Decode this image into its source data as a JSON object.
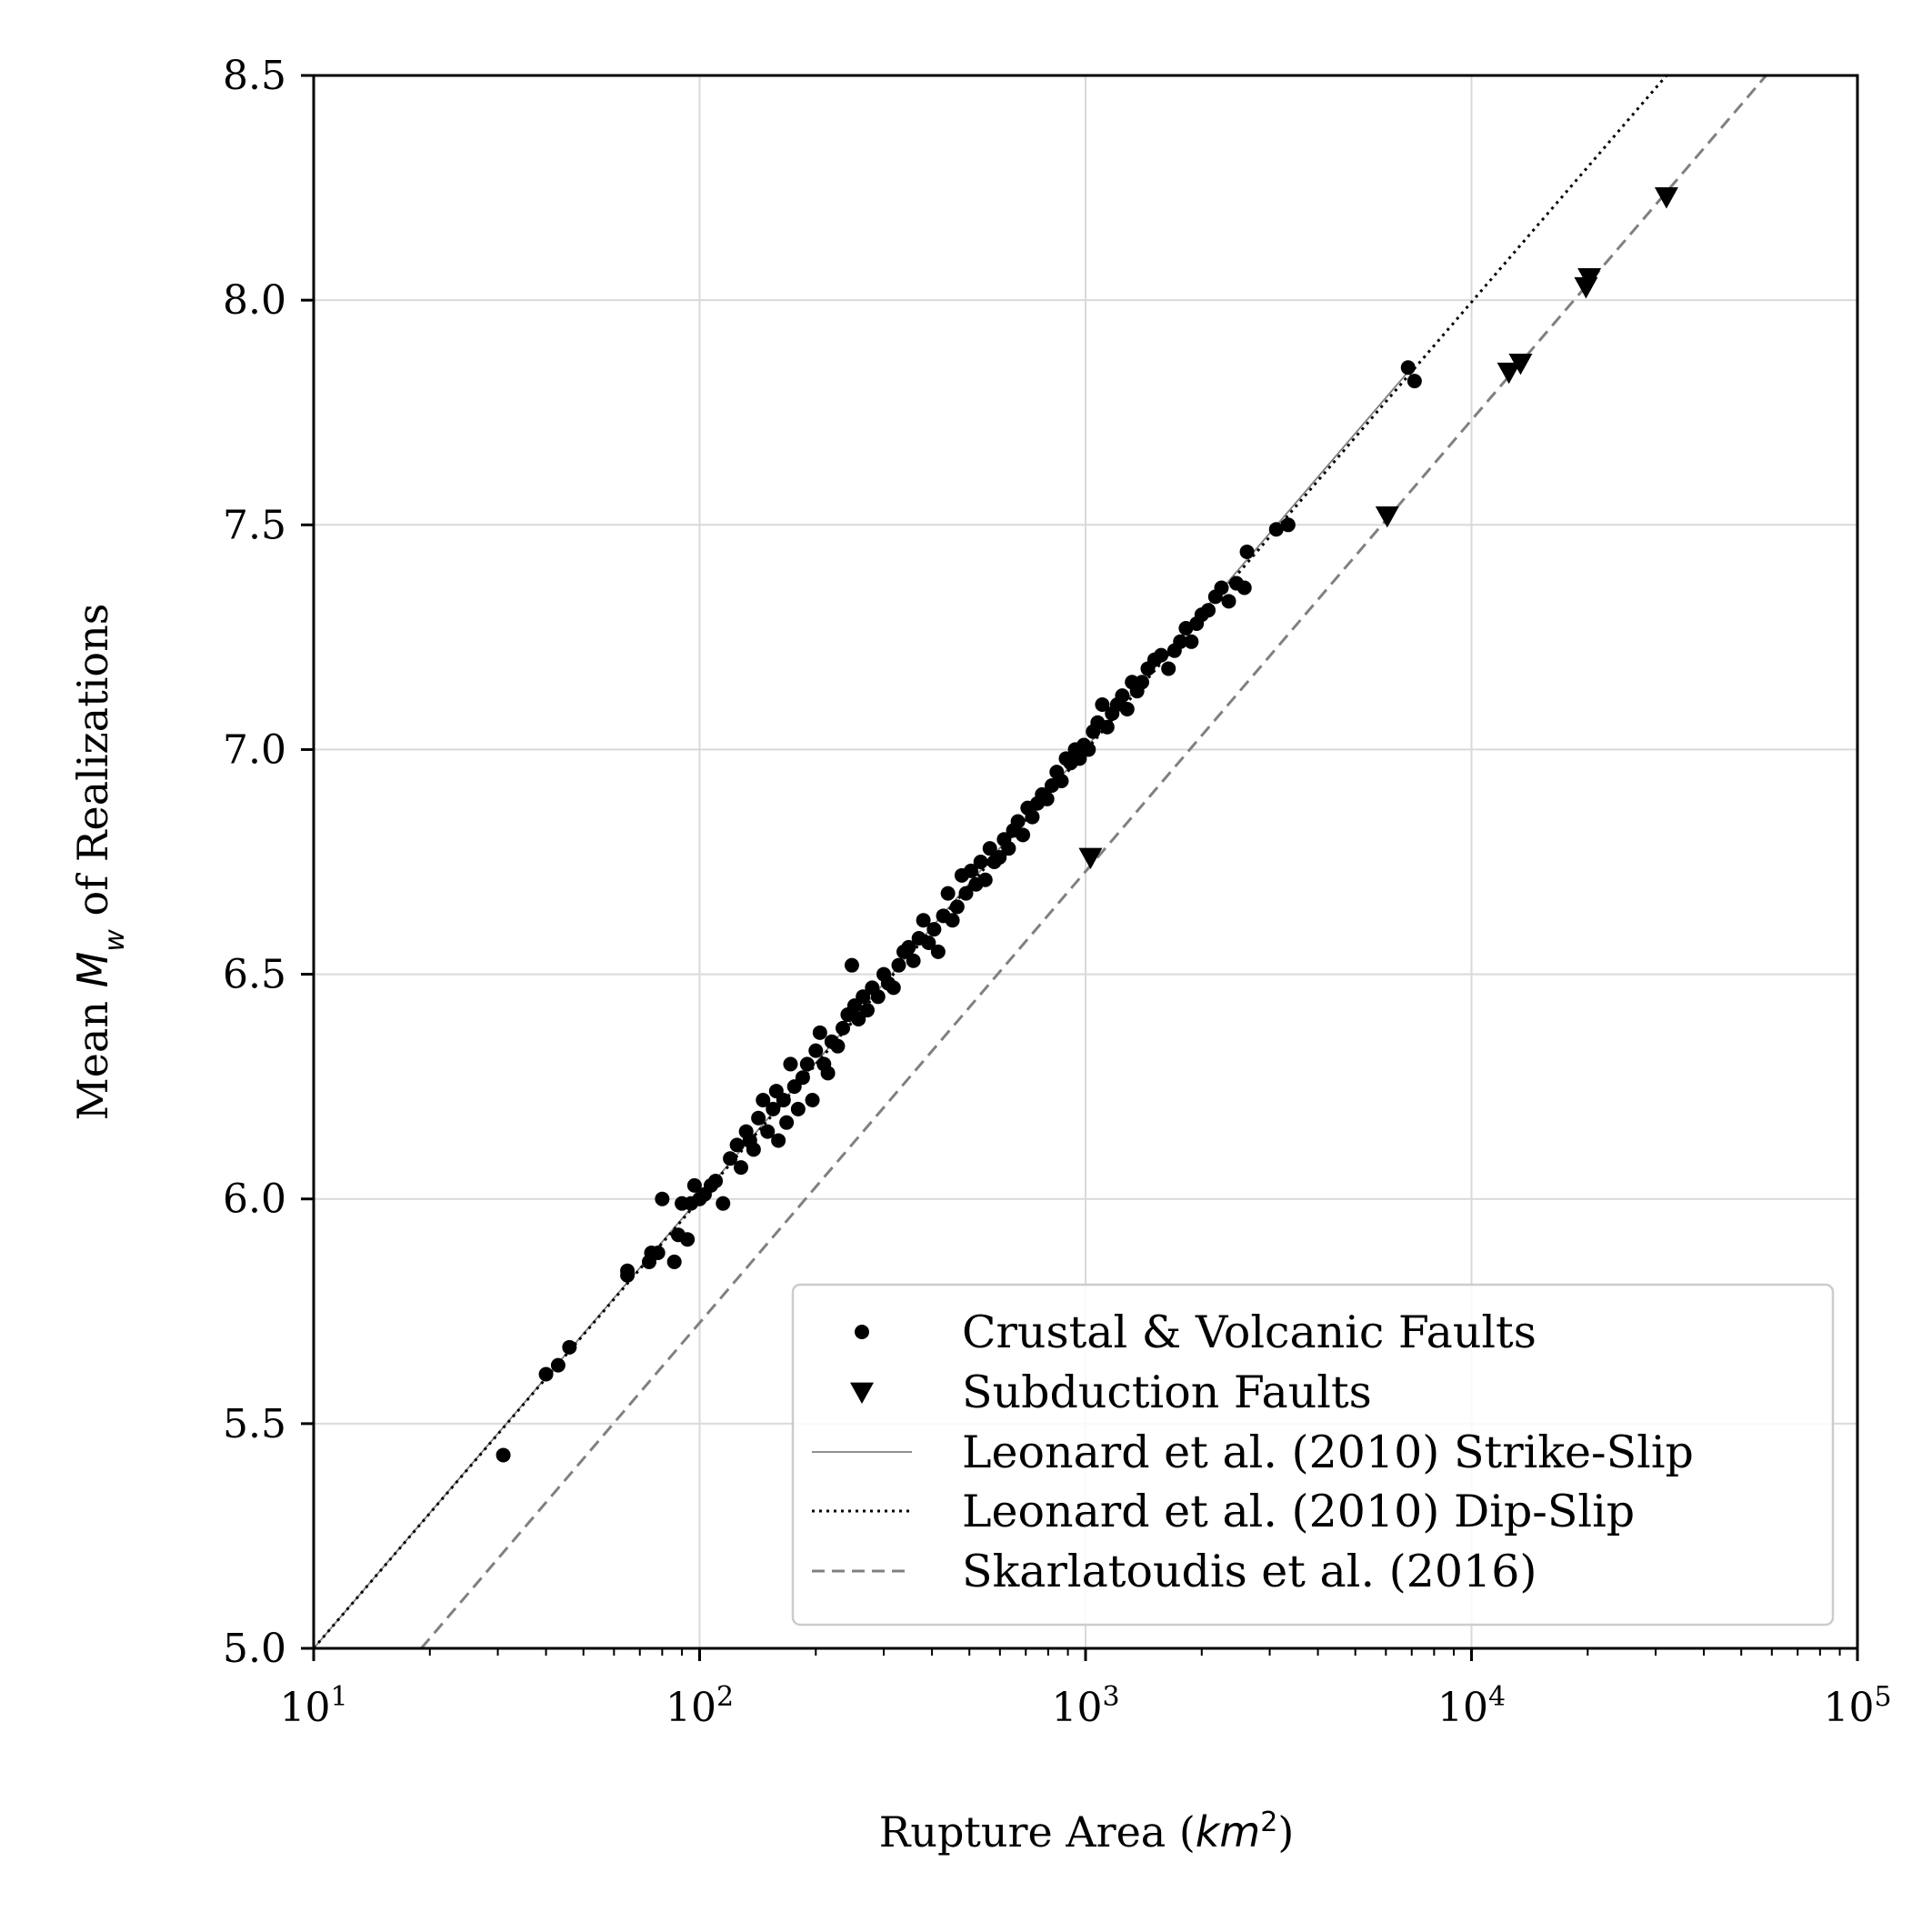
{
  "chart_data": {
    "type": "scatter",
    "xlabel": "Rupture Area (km²)",
    "xlabel_prefix": "Rupture Area (",
    "xlabel_math": "km",
    "xlabel_sup": "2",
    "xlabel_suffix": ")",
    "ylabel": "Mean M_w of Realizations",
    "ylabel_prefix": "Mean ",
    "ylabel_math": "M",
    "ylabel_sub": "w",
    "ylabel_suffix": " of Realizations",
    "xscale": "log",
    "xlim": [
      10,
      100000
    ],
    "ylim": [
      5.0,
      8.5
    ],
    "x_tick_labels": [
      {
        "value": 10,
        "base": "10",
        "exp": "1"
      },
      {
        "value": 100,
        "base": "10",
        "exp": "2"
      },
      {
        "value": 1000,
        "base": "10",
        "exp": "3"
      },
      {
        "value": 10000,
        "base": "10",
        "exp": "4"
      },
      {
        "value": 100000,
        "base": "10",
        "exp": "5"
      }
    ],
    "y_ticks": [
      5.0,
      5.5,
      6.0,
      6.5,
      7.0,
      7.5,
      8.0,
      8.5
    ],
    "y_tick_labels": [
      "5.0",
      "5.5",
      "6.0",
      "6.5",
      "7.0",
      "7.5",
      "8.0",
      "8.5"
    ],
    "grid": true,
    "legend_position": "lower-right",
    "series": [
      {
        "name": "Crustal & Volcanic Faults",
        "kind": "scatter",
        "marker": "circle",
        "color": "#000000",
        "points": [
          [
            31,
            5.43
          ],
          [
            40,
            5.61
          ],
          [
            43,
            5.63
          ],
          [
            46,
            5.67
          ],
          [
            65,
            5.83
          ],
          [
            65,
            5.84
          ],
          [
            74,
            5.86
          ],
          [
            75,
            5.88
          ],
          [
            78,
            5.88
          ],
          [
            80,
            6.0
          ],
          [
            86,
            5.86
          ],
          [
            88,
            5.92
          ],
          [
            90,
            5.99
          ],
          [
            93,
            5.91
          ],
          [
            95,
            5.99
          ],
          [
            97,
            6.03
          ],
          [
            100,
            6.0
          ],
          [
            103,
            6.01
          ],
          [
            107,
            6.03
          ],
          [
            110,
            6.04
          ],
          [
            115,
            5.99
          ],
          [
            120,
            6.09
          ],
          [
            125,
            6.12
          ],
          [
            128,
            6.07
          ],
          [
            132,
            6.15
          ],
          [
            135,
            6.13
          ],
          [
            138,
            6.11
          ],
          [
            142,
            6.18
          ],
          [
            146,
            6.22
          ],
          [
            150,
            6.15
          ],
          [
            155,
            6.2
          ],
          [
            158,
            6.24
          ],
          [
            160,
            6.13
          ],
          [
            165,
            6.22
          ],
          [
            168,
            6.17
          ],
          [
            172,
            6.3
          ],
          [
            176,
            6.25
          ],
          [
            180,
            6.2
          ],
          [
            185,
            6.27
          ],
          [
            190,
            6.3
          ],
          [
            196,
            6.22
          ],
          [
            200,
            6.33
          ],
          [
            205,
            6.37
          ],
          [
            210,
            6.3
          ],
          [
            215,
            6.28
          ],
          [
            220,
            6.35
          ],
          [
            228,
            6.34
          ],
          [
            235,
            6.38
          ],
          [
            242,
            6.41
          ],
          [
            248,
            6.52
          ],
          [
            252,
            6.43
          ],
          [
            258,
            6.4
          ],
          [
            265,
            6.45
          ],
          [
            272,
            6.42
          ],
          [
            280,
            6.47
          ],
          [
            290,
            6.45
          ],
          [
            300,
            6.5
          ],
          [
            308,
            6.48
          ],
          [
            318,
            6.47
          ],
          [
            328,
            6.52
          ],
          [
            338,
            6.55
          ],
          [
            348,
            6.56
          ],
          [
            358,
            6.53
          ],
          [
            370,
            6.58
          ],
          [
            380,
            6.62
          ],
          [
            392,
            6.57
          ],
          [
            405,
            6.6
          ],
          [
            415,
            6.55
          ],
          [
            428,
            6.63
          ],
          [
            440,
            6.68
          ],
          [
            452,
            6.62
          ],
          [
            465,
            6.65
          ],
          [
            478,
            6.72
          ],
          [
            490,
            6.68
          ],
          [
            505,
            6.73
          ],
          [
            520,
            6.7
          ],
          [
            535,
            6.75
          ],
          [
            550,
            6.71
          ],
          [
            565,
            6.78
          ],
          [
            580,
            6.75
          ],
          [
            598,
            6.76
          ],
          [
            615,
            6.8
          ],
          [
            632,
            6.78
          ],
          [
            650,
            6.82
          ],
          [
            668,
            6.84
          ],
          [
            688,
            6.81
          ],
          [
            708,
            6.87
          ],
          [
            728,
            6.85
          ],
          [
            750,
            6.88
          ],
          [
            772,
            6.9
          ],
          [
            795,
            6.89
          ],
          [
            818,
            6.92
          ],
          [
            842,
            6.95
          ],
          [
            866,
            6.93
          ],
          [
            890,
            6.98
          ],
          [
            915,
            6.97
          ],
          [
            940,
            7.0
          ],
          [
            965,
            6.98
          ],
          [
            990,
            7.01
          ],
          [
            1018,
            7.0
          ],
          [
            1046,
            7.04
          ],
          [
            1075,
            7.06
          ],
          [
            1105,
            7.1
          ],
          [
            1138,
            7.05
          ],
          [
            1172,
            7.08
          ],
          [
            1208,
            7.1
          ],
          [
            1245,
            7.12
          ],
          [
            1282,
            7.09
          ],
          [
            1320,
            7.15
          ],
          [
            1360,
            7.13
          ],
          [
            1400,
            7.15
          ],
          [
            1450,
            7.18
          ],
          [
            1510,
            7.2
          ],
          [
            1570,
            7.21
          ],
          [
            1640,
            7.18
          ],
          [
            1700,
            7.22
          ],
          [
            1760,
            7.24
          ],
          [
            1820,
            7.27
          ],
          [
            1880,
            7.24
          ],
          [
            1940,
            7.28
          ],
          [
            2000,
            7.3
          ],
          [
            2080,
            7.31
          ],
          [
            2170,
            7.34
          ],
          [
            2250,
            7.36
          ],
          [
            2350,
            7.33
          ],
          [
            2460,
            7.37
          ],
          [
            2580,
            7.36
          ],
          [
            2620,
            7.44
          ],
          [
            3120,
            7.49
          ],
          [
            3350,
            7.5
          ],
          [
            6850,
            7.85
          ],
          [
            7120,
            7.82
          ]
        ]
      },
      {
        "name": "Subduction Faults",
        "kind": "scatter",
        "marker": "triangle-down",
        "color": "#000000",
        "points": [
          [
            1030,
            6.76
          ],
          [
            6050,
            7.52
          ],
          [
            12500,
            7.84
          ],
          [
            13400,
            7.86
          ],
          [
            19800,
            8.03
          ],
          [
            20200,
            8.05
          ],
          [
            32000,
            8.23
          ]
        ]
      },
      {
        "name": "Leonard et al. (2010) Strike-Slip",
        "kind": "line",
        "style": "solid",
        "color": "#808080",
        "x": [
          10,
          7000
        ],
        "y": [
          5.0,
          7.85
        ]
      },
      {
        "name": "Leonard et al. (2010) Dip-Slip",
        "kind": "line",
        "style": "dotted",
        "color": "#000000",
        "x": [
          10,
          32000
        ],
        "y": [
          5.0,
          8.5
        ]
      },
      {
        "name": "Skarlatoudis et al. (2016)",
        "kind": "line",
        "style": "dashed",
        "color": "#808080",
        "x": [
          19,
          58000
        ],
        "y": [
          5.0,
          8.5
        ]
      }
    ]
  }
}
